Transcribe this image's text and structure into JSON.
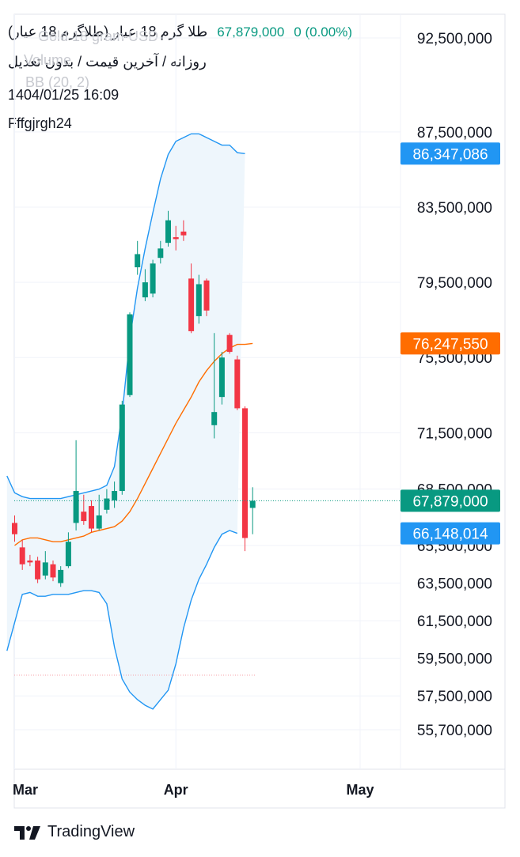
{
  "header": {
    "title": "طلا گرم 18 عیار (طلاگرم 18 عیار)",
    "price_text": "67,879,000",
    "change_text": "0 (0.00%)",
    "subtitle": "روزانه / آخرین قیمت / بدون تعدیل",
    "timestamp": "1404/01/25 16:09",
    "username": "Fffgjrgh24",
    "ghost_symbol": "Gold 18 gram USD",
    "ghost_volume": "Volume",
    "ghost_bb": "BB (20, 2)"
  },
  "branding": {
    "label": "TradingView"
  },
  "colors": {
    "up": "#089981",
    "down": "#f23645",
    "bb_band": "#2196f3",
    "bb_basis": "#ff6d00",
    "bb_fill": "#eef6fc",
    "grid": "#f0f3fa",
    "axis_text": "#131722"
  },
  "chart_data": {
    "type": "candlestick",
    "y_ticks": [
      {
        "value": 92500000,
        "label": "92,500,000"
      },
      {
        "value": 87500000,
        "label": "87,500,000"
      },
      {
        "value": 83500000,
        "label": "83,500,000"
      },
      {
        "value": 79500000,
        "label": "79,500,000"
      },
      {
        "value": 75500000,
        "label": "75,500,000"
      },
      {
        "value": 71500000,
        "label": "71,500,000"
      },
      {
        "value": 68500000,
        "label": "68,500,000"
      },
      {
        "value": 65500000,
        "label": "65,500,000"
      },
      {
        "value": 63500000,
        "label": "63,500,000"
      },
      {
        "value": 61500000,
        "label": "61,500,000"
      },
      {
        "value": 59500000,
        "label": "59,500,000"
      },
      {
        "value": 57500000,
        "label": "57,500,000"
      },
      {
        "value": 55700000,
        "label": "55,700,000"
      }
    ],
    "x_ticks": [
      {
        "index": 0,
        "label": "Mar"
      },
      {
        "index": 21,
        "label": "Apr"
      },
      {
        "index": 45,
        "label": "May"
      }
    ],
    "price_labels": [
      {
        "name": "bb-upper",
        "value": 86347086,
        "label": "86,347,086",
        "color": "#2196f3"
      },
      {
        "name": "bb-basis",
        "value": 76247550,
        "label": "76,247,550",
        "color": "#ff6d00"
      },
      {
        "name": "last-price",
        "value": 67879000,
        "label": "67,879,000",
        "color": "#089981"
      },
      {
        "name": "bb-lower",
        "value": 66148014,
        "label": "66,148,014",
        "color": "#2196f3"
      }
    ],
    "candles": [
      {
        "o": 66700000,
        "h": 67100000,
        "l": 65700000,
        "c": 66100000
      },
      {
        "o": 65400000,
        "h": 65800000,
        "l": 64200000,
        "c": 64500000
      },
      {
        "o": 64700000,
        "h": 65000000,
        "l": 64400000,
        "c": 64600000
      },
      {
        "o": 64700000,
        "h": 64900000,
        "l": 63500000,
        "c": 63700000
      },
      {
        "o": 63900000,
        "h": 65200000,
        "l": 63700000,
        "c": 64600000
      },
      {
        "o": 64500000,
        "h": 64700000,
        "l": 63600000,
        "c": 63800000
      },
      {
        "o": 63500000,
        "h": 64400000,
        "l": 63300000,
        "c": 64200000
      },
      {
        "o": 64400000,
        "h": 66200000,
        "l": 64300000,
        "c": 65700000
      },
      {
        "o": 66700000,
        "h": 71100000,
        "l": 66300000,
        "c": 68400000
      },
      {
        "o": 67300000,
        "h": 68200000,
        "l": 66600000,
        "c": 66800000
      },
      {
        "o": 67600000,
        "h": 67900000,
        "l": 66200000,
        "c": 66400000
      },
      {
        "o": 66400000,
        "h": 68200000,
        "l": 66300000,
        "c": 67100000
      },
      {
        "o": 67400000,
        "h": 68500000,
        "l": 67200000,
        "c": 68000000
      },
      {
        "o": 67900000,
        "h": 68900000,
        "l": 67500000,
        "c": 68400000
      },
      {
        "o": 68400000,
        "h": 73200000,
        "l": 68200000,
        "c": 73000000
      },
      {
        "o": 73500000,
        "h": 77900000,
        "l": 73400000,
        "c": 77800000
      },
      {
        "o": 80300000,
        "h": 81700000,
        "l": 79900000,
        "c": 81000000
      },
      {
        "o": 78700000,
        "h": 80200000,
        "l": 78500000,
        "c": 79500000
      },
      {
        "o": 78900000,
        "h": 80700000,
        "l": 78700000,
        "c": 80500000
      },
      {
        "o": 80800000,
        "h": 81700000,
        "l": 80500000,
        "c": 81300000
      },
      {
        "o": 81600000,
        "h": 83300000,
        "l": 81400000,
        "c": 82800000
      },
      {
        "o": 81900000,
        "h": 82500000,
        "l": 81200000,
        "c": 81800000
      },
      {
        "o": 82200000,
        "h": 82800000,
        "l": 81700000,
        "c": 82000000
      },
      {
        "o": 79700000,
        "h": 80500000,
        "l": 76800000,
        "c": 76900000
      },
      {
        "o": 77700000,
        "h": 79900000,
        "l": 77300000,
        "c": 79400000
      },
      {
        "o": 79600000,
        "h": 79700000,
        "l": 77700000,
        "c": 78000000
      },
      {
        "o": 71900000,
        "h": 76800000,
        "l": 71200000,
        "c": 72600000
      },
      {
        "o": 73400000,
        "h": 75800000,
        "l": 73000000,
        "c": 75500000
      },
      {
        "o": 76700000,
        "h": 76800000,
        "l": 75700000,
        "c": 75800000
      },
      {
        "o": 75400000,
        "h": 75600000,
        "l": 72700000,
        "c": 72800000
      },
      {
        "o": 72800000,
        "h": 72900000,
        "l": 65200000,
        "c": 65900000
      },
      {
        "o": 67500000,
        "h": 68600000,
        "l": 66100000,
        "c": 67879000
      }
    ],
    "bb_upper_start": -1,
    "bb_upper": [
      69200000,
      68300000,
      68100000,
      68000000,
      68000000,
      68000000,
      68000000,
      68000000,
      68100000,
      68200000,
      68300000,
      68400000,
      68500000,
      68700000,
      69700000,
      72500000,
      76500000,
      79200000,
      81300000,
      83200000,
      85000000,
      86300000,
      87000000,
      87200000,
      87400000,
      87400000,
      87200000,
      87000000,
      86800000,
      86800000,
      86400000,
      86347086
    ],
    "bb_basis_start": 0,
    "bb_basis": [
      65500000,
      65800000,
      65900000,
      65900000,
      65800000,
      65700000,
      65700000,
      65800000,
      65900000,
      66000000,
      66200000,
      66300000,
      66400000,
      66500000,
      66800000,
      67300000,
      68000000,
      68800000,
      69600000,
      70400000,
      71200000,
      72000000,
      72700000,
      73400000,
      74200000,
      74800000,
      75300000,
      75700000,
      76000000,
      76200000,
      76200000,
      76247550
    ],
    "bb_lower_start": -1,
    "bb_lower": [
      59900000,
      61400000,
      62900000,
      63000000,
      62800000,
      62800000,
      62900000,
      62900000,
      62900000,
      63000000,
      63100000,
      63100000,
      63000000,
      62400000,
      60100000,
      58400000,
      57700000,
      57300000,
      57000000,
      56800000,
      57300000,
      57800000,
      59200000,
      61100000,
      62600000,
      63700000,
      64500000,
      65400000,
      66100000,
      66300000,
      66148014
    ]
  }
}
